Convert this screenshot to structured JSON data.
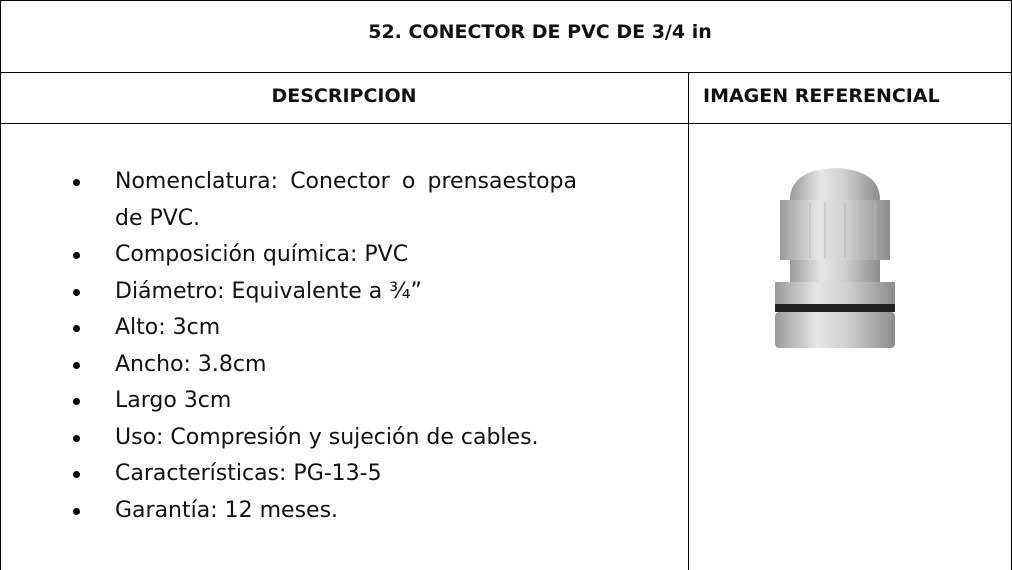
{
  "header": {
    "title": "52.  CONECTOR DE PVC DE 3/4 in"
  },
  "table": {
    "headers": [
      "DESCRIPCION",
      "IMAGEN REFERENCIAL"
    ],
    "items": [
      "Nomenclatura: Conector o prensaestopa de PVC.",
      "Composición química: PVC",
      "Diámetro: Equivalente a ¾”",
      "Alto: 3cm",
      "Ancho: 3.8cm",
      "Largo 3cm",
      "Uso: Compresión y sujeción de cables.",
      "Características: PG-13-5",
      "Garantía: 12 meses."
    ]
  }
}
